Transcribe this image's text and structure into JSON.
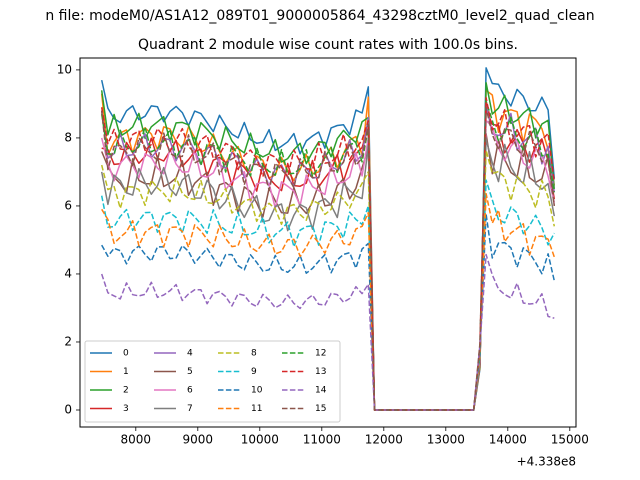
{
  "figure": {
    "suptitle": "n file: modeM0/AS1A12_089T01_9000005864_43298cztM0_level2_quad_clean",
    "title": "Quadrant 2 module wise count rates with 100.0s bins."
  },
  "chart_data": {
    "type": "line",
    "title": "Quadrant 2 module wise count rates with 100.0s bins.",
    "xlabel": "",
    "ylabel": "",
    "x_offset_label": "+4.338e8",
    "xlim": [
      7100,
      15100
    ],
    "ylim": [
      -0.5,
      10.35
    ],
    "x_ticks": [
      8000,
      9000,
      10000,
      11000,
      12000,
      13000,
      14000,
      15000
    ],
    "y_ticks": [
      0,
      2,
      4,
      6,
      8,
      10
    ],
    "grid": false,
    "legend_placement": "lower-left",
    "x_start": 7450,
    "x_step": 100,
    "n_points": 74,
    "series": [
      {
        "name": "0",
        "color": "#1f77b4",
        "dash": "solid",
        "level": 8.7,
        "gain": 0.9,
        "r_start": 9.7,
        "r_end": 9.5,
        "tail": 6.8,
        "noise": 0.25
      },
      {
        "name": "1",
        "color": "#ff7f0e",
        "dash": "solid",
        "level": 8.0,
        "gain": 1.0,
        "r_start": 9.3,
        "r_end": 9.2,
        "tail": 6.6,
        "noise": 0.35
      },
      {
        "name": "2",
        "color": "#2ca02c",
        "dash": "solid",
        "level": 8.3,
        "gain": 0.8,
        "r_start": 9.4,
        "r_end": 8.6,
        "tail": 6.5,
        "noise": 0.3
      },
      {
        "name": "3",
        "color": "#d62728",
        "dash": "solid",
        "level": 7.5,
        "gain": 0.8,
        "r_start": 7.7,
        "r_end": 8.3,
        "tail": 6.2,
        "noise": 0.35
      },
      {
        "name": "4",
        "color": "#9467bd",
        "dash": "solid",
        "level": 7.7,
        "gain": 0.8,
        "r_start": 8.8,
        "r_end": 8.6,
        "tail": 6.4,
        "noise": 0.35
      },
      {
        "name": "5",
        "color": "#8c564b",
        "dash": "solid",
        "level": 6.8,
        "gain": 0.8,
        "r_start": 7.6,
        "r_end": 7.7,
        "tail": 6.0,
        "noise": 0.4
      },
      {
        "name": "6",
        "color": "#e377c2",
        "dash": "solid",
        "level": 7.2,
        "gain": 0.8,
        "r_start": 8.0,
        "r_end": 8.0,
        "tail": 6.1,
        "noise": 0.35
      },
      {
        "name": "7",
        "color": "#7f7f7f",
        "dash": "solid",
        "level": 6.6,
        "gain": 0.9,
        "r_start": 7.0,
        "r_end": 7.8,
        "tail": 5.7,
        "noise": 0.4
      },
      {
        "name": "8",
        "color": "#bcbd22",
        "dash": "dash",
        "level": 6.4,
        "gain": 0.6,
        "r_start": 7.2,
        "r_end": 7.0,
        "tail": 5.4,
        "noise": 0.3
      },
      {
        "name": "9",
        "color": "#17becf",
        "dash": "dash",
        "level": 5.6,
        "gain": 0.4,
        "r_start": 6.3,
        "r_end": 6.0,
        "tail": 5.2,
        "noise": 0.3
      },
      {
        "name": "10",
        "color": "#1f77b4",
        "dash": "dash",
        "level": 4.6,
        "gain": 0.4,
        "r_start": 4.85,
        "r_end": 4.9,
        "tail": 3.8,
        "noise": 0.25
      },
      {
        "name": "11",
        "color": "#ff7f0e",
        "dash": "dash",
        "level": 5.2,
        "gain": 0.4,
        "r_start": 5.9,
        "r_end": 5.8,
        "tail": 4.5,
        "noise": 0.3
      },
      {
        "name": "12",
        "color": "#2ca02c",
        "dash": "dash",
        "level": 7.8,
        "gain": 0.7,
        "r_start": 8.7,
        "r_end": 8.3,
        "tail": 6.4,
        "noise": 0.35
      },
      {
        "name": "13",
        "color": "#d62728",
        "dash": "dash",
        "level": 7.9,
        "gain": 0.7,
        "r_start": 8.9,
        "r_end": 8.5,
        "tail": 6.7,
        "noise": 0.35
      },
      {
        "name": "14",
        "color": "#9467bd",
        "dash": "dash",
        "level": 3.45,
        "gain": 0.3,
        "r_start": 4.0,
        "r_end": 3.7,
        "tail": 2.7,
        "noise": 0.2
      },
      {
        "name": "15",
        "color": "#8c564b",
        "dash": "dash",
        "level": 7.6,
        "gain": 0.7,
        "r_start": 8.8,
        "r_end": 8.4,
        "tail": 6.0,
        "noise": 0.35
      }
    ]
  }
}
